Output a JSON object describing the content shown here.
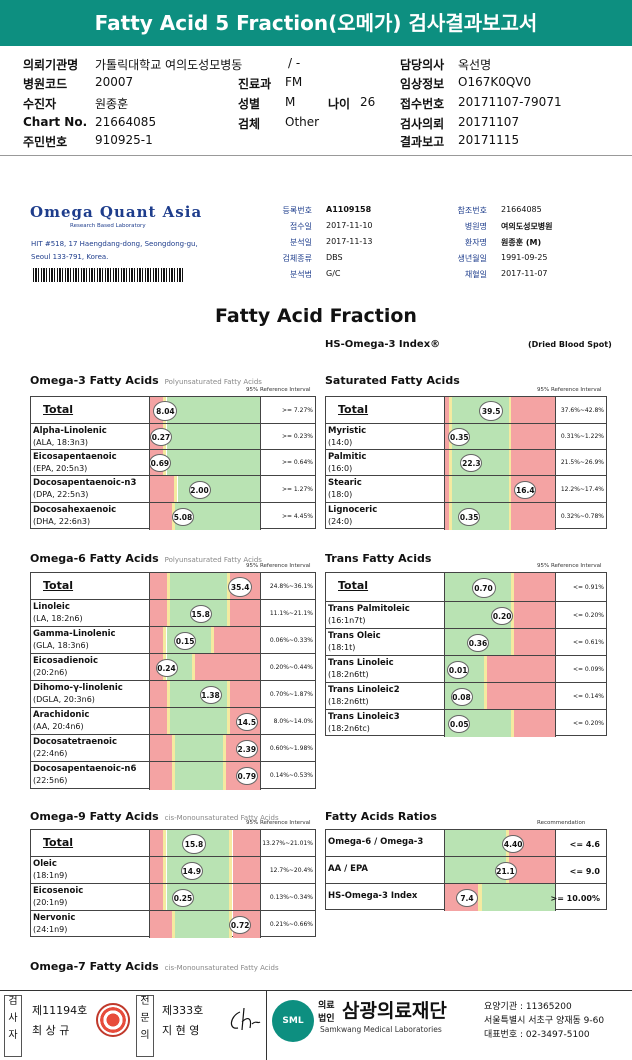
{
  "title": "Fatty Acid 5 Fraction(오메가) 검사결과보고서",
  "info": {
    "inst_label": "의뢰기관명",
    "inst_value": "가톨릭대학교 여의도성모병동",
    "inst_extra": "/ -",
    "doctor_label": "담당의사",
    "doctor_value": "옥선명",
    "code_label": "병원코드",
    "code_value": "20007",
    "dept_label": "진료과",
    "dept_value": "FM",
    "clin_label": "임상정보",
    "clin_value": "O167K0QV0",
    "collector_label": "수진자",
    "collector_value": "원종훈",
    "sex_label": "성별",
    "sex_value": "M",
    "age_label": "나이",
    "age_value": "26",
    "recv_label": "접수번호",
    "recv_value": "20171107-79071",
    "chart_label": "Chart No.",
    "chart_value": "21664085",
    "spec_label": "검체",
    "spec_value": "Other",
    "req_label": "검사의뢰",
    "req_value": "20171107",
    "id_label": "주민번호",
    "id_value": "910925-1",
    "report_label": "결과보고",
    "report_value": "20171115"
  },
  "lab": {
    "name": "Omega Quant Asia",
    "sub": "Research Based Laboratory",
    "addr1": "HIT #518, 17 Haengdang-dong, Seongdong-gu,",
    "addr2": "Seoul 133-791, Korea.",
    "fields": [
      {
        "k": "등록번호",
        "v": "A1109158",
        "k2": "참조번호",
        "v2": "21664085"
      },
      {
        "k": "접수일",
        "v": "2017-11-10",
        "k2": "병원명",
        "v2": "여의도성모병원"
      },
      {
        "k": "분석일",
        "v": "2017-11-13",
        "k2": "환자명",
        "v2": "원종훈 (M)"
      },
      {
        "k": "검체종류",
        "v": "DBS",
        "k2": "생년월일",
        "v2": "1991-09-25"
      },
      {
        "k": "분석법",
        "v": "G/C",
        "k2": "채혈일",
        "v2": "2017-11-07"
      }
    ]
  },
  "report_title": "Fatty Acid Fraction",
  "hs_index": "HS-Omega-3 Index®",
  "dbs": "(Dried Blood Spot)",
  "ref_header": "95% Reference Interval",
  "rec_header": "Recommendation",
  "sections": [
    {
      "key": "o3",
      "title": "Omega-3 Fatty Acids",
      "sub": "Polyunsaturated Fatty Acids",
      "rows": [
        {
          "name": "Total",
          "sub": "",
          "value": "8.04",
          "pos": 0.14,
          "ref": ">= 7.27%",
          "total": true
        },
        {
          "name": "Alpha-Linolenic",
          "sub": "(ALA, 18:3n3)",
          "value": "0.27",
          "pos": 0.1,
          "ref": ">= 0.23%"
        },
        {
          "name": "Eicosapentaenoic",
          "sub": "(EPA, 20:5n3)",
          "value": "0.69",
          "pos": 0.09,
          "ref": ">= 0.64%"
        },
        {
          "name": "Docosapentaenoic-n3",
          "sub": "(DPA, 22:5n3)",
          "value": "2.00",
          "pos": 0.45,
          "ref": ">= 1.27%"
        },
        {
          "name": "Docosahexaenoic",
          "sub": "(DHA, 22:6n3)",
          "value": "5.08",
          "pos": 0.3,
          "ref": ">= 4.45%"
        }
      ]
    },
    {
      "key": "sat",
      "title": "Saturated Fatty Acids",
      "sub": "",
      "rows": [
        {
          "name": "Total",
          "sub": "",
          "value": "39.5",
          "pos": 0.42,
          "ref": "37.6%~42.8%",
          "total": true
        },
        {
          "name": "Myristic",
          "sub": "(14:0)",
          "value": "0.35",
          "pos": 0.13,
          "ref": "0.31%~1.22%"
        },
        {
          "name": "Palmitic",
          "sub": "(16:0)",
          "value": "22.3",
          "pos": 0.24,
          "ref": "21.5%~26.9%"
        },
        {
          "name": "Stearic",
          "sub": "(18:0)",
          "value": "16.4",
          "pos": 0.73,
          "ref": "12.2%~17.4%"
        },
        {
          "name": "Lignoceric",
          "sub": "(24:0)",
          "value": "0.35",
          "pos": 0.22,
          "ref": "0.32%~0.78%"
        }
      ]
    },
    {
      "key": "o6",
      "title": "Omega-6 Fatty Acids",
      "sub": "Polyunsaturated Fatty Acids",
      "rows": [
        {
          "name": "Total",
          "sub": "",
          "value": "35.4",
          "pos": 0.82,
          "ref": "24.8%~36.1%",
          "total": true
        },
        {
          "name": "Linoleic",
          "sub": "(LA, 18:2n6)",
          "value": "15.8",
          "pos": 0.46,
          "ref": "11.1%~21.1%"
        },
        {
          "name": "Gamma-Linolenic",
          "sub": "(GLA, 18:3n6)",
          "value": "0.15",
          "pos": 0.32,
          "ref": "0.06%~0.33%"
        },
        {
          "name": "Eicosadienoic",
          "sub": "(20:2n6)",
          "value": "0.24",
          "pos": 0.15,
          "ref": "0.20%~0.44%"
        },
        {
          "name": "Dihomo-γ-linolenic",
          "sub": "(DGLA, 20:3n6)",
          "value": "1.38",
          "pos": 0.55,
          "ref": "0.70%~1.87%"
        },
        {
          "name": "Arachidonic",
          "sub": "(AA, 20:4n6)",
          "value": "14.5",
          "pos": 0.88,
          "ref": "8.0%~14.0%"
        },
        {
          "name": "Docosatetraenoic",
          "sub": "(22:4n6)",
          "value": "2.39",
          "pos": 0.88,
          "ref": "0.60%~1.98%"
        },
        {
          "name": "Docosapentaenoic-n6",
          "sub": "(22:5n6)",
          "value": "0.79",
          "pos": 0.88,
          "ref": "0.14%~0.53%"
        }
      ]
    },
    {
      "key": "trans",
      "title": "Trans Fatty Acids",
      "sub": "",
      "rows": [
        {
          "name": "Total",
          "sub": "",
          "value": "0.70",
          "pos": 0.35,
          "ref": "<= 0.91%",
          "total": true
        },
        {
          "name": "Trans Palmitoleic",
          "sub": "(16:1n7t)",
          "value": "0.20",
          "pos": 0.52,
          "ref": "<= 0.20%"
        },
        {
          "name": "Trans Oleic",
          "sub": "(18:1t)",
          "value": "0.36",
          "pos": 0.3,
          "ref": "<= 0.61%"
        },
        {
          "name": "Trans Linoleic",
          "sub": "(18:2n6tt)",
          "value": "0.01",
          "pos": 0.12,
          "ref": "<= 0.09%"
        },
        {
          "name": "Trans Linoleic2",
          "sub": "(18:2n6tt)",
          "value": "0.08",
          "pos": 0.15,
          "ref": "<= 0.14%"
        },
        {
          "name": "Trans Linoleic3",
          "sub": "(18:2n6tc)",
          "value": "0.05",
          "pos": 0.13,
          "ref": "<= 0.20%"
        }
      ]
    },
    {
      "key": "o9",
      "title": "Omega-9 Fatty Acids",
      "sub": "cis-Monounsaturated Fatty Acids",
      "rows": [
        {
          "name": "Total",
          "sub": "",
          "value": "15.8",
          "pos": 0.4,
          "ref": "13.27%~21.01%",
          "total": true
        },
        {
          "name": "Oleic",
          "sub": "(18:1n9)",
          "value": "14.9",
          "pos": 0.38,
          "ref": "12.7%~20.4%"
        },
        {
          "name": "Eicosenoic",
          "sub": "(20:1n9)",
          "value": "0.25",
          "pos": 0.3,
          "ref": "0.13%~0.34%"
        },
        {
          "name": "Nervonic",
          "sub": "(24:1n9)",
          "value": "0.72",
          "pos": 0.82,
          "ref": "0.21%~0.66%"
        }
      ]
    },
    {
      "key": "ratio",
      "title": "Fatty Acids Ratios",
      "sub": "",
      "rows": [
        {
          "name": "Omega-6 / Omega-3",
          "sub": "",
          "value": "4.40",
          "pos": 0.62,
          "ref": "<= 4.6"
        },
        {
          "name": "AA / EPA",
          "sub": "",
          "value": "21.1",
          "pos": 0.55,
          "ref": "<= 9.0"
        },
        {
          "name": "HS-Omega-3 Index",
          "sub": "",
          "value": "7.4",
          "pos": 0.2,
          "ref": ">= 10.00%"
        }
      ]
    },
    {
      "key": "o7",
      "title": "Omega-7 Fatty Acids",
      "sub": "cis-Monounsaturated Fatty Acids",
      "rows": []
    }
  ],
  "footer": {
    "v1": "검",
    "v2": "사",
    "v3": "자",
    "lic1": "제11194호",
    "name1": "최 상 규",
    "w1": "전",
    "w2": "문",
    "w3": "의",
    "lic2": "제333호",
    "name2": "지 현 영",
    "sml": "SML",
    "corp1": "의료",
    "corp2": "법인",
    "foundation": "삼광의료재단",
    "foundation_en": "Samkwang Medical Laboratories",
    "code": "요양기관 : 11365200",
    "addr": "서울특별시 서초구 양재동 9-60",
    "phone": "대표번호 : 02-3497-5100"
  },
  "colors": {
    "header": "#0d8f80",
    "red": "#f4a3a3",
    "yellow": "#f5eaa0",
    "green": "#b9e3b3"
  }
}
